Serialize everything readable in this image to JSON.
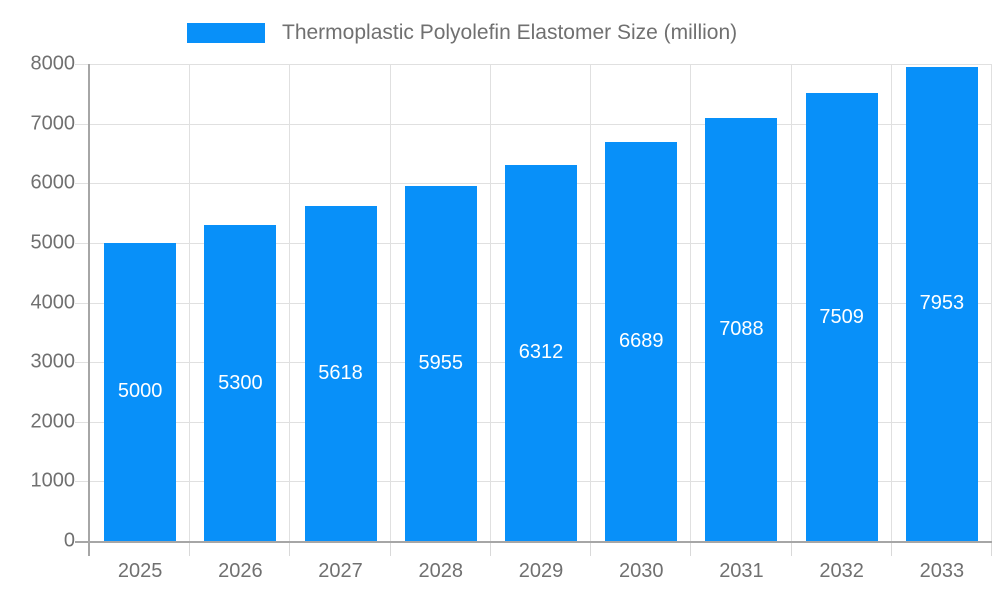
{
  "chart_data": {
    "type": "bar",
    "title": "Thermoplastic Polyolefin Elastomer Size (million)",
    "categories": [
      "2025",
      "2026",
      "2027",
      "2028",
      "2029",
      "2030",
      "2031",
      "2032",
      "2033"
    ],
    "values": [
      5000,
      5300,
      5618,
      5955,
      6312,
      6689,
      7088,
      7509,
      7953
    ],
    "xlabel": "",
    "ylabel": "",
    "ylim": [
      0,
      8000
    ],
    "yticks": [
      0,
      1000,
      2000,
      3000,
      4000,
      5000,
      6000,
      7000,
      8000
    ],
    "grid": true,
    "legend_position": "top",
    "bar_value_labels_shown": true,
    "colors": {
      "bar": "#0890F9",
      "bar_label": "#FFFFFF",
      "grid": "#E0E0E0",
      "axis": "#A6A6A6",
      "tick": "#D9D9D9",
      "axis_text": "#707070",
      "title_text": "#707070",
      "background": "#FFFFFF"
    }
  }
}
